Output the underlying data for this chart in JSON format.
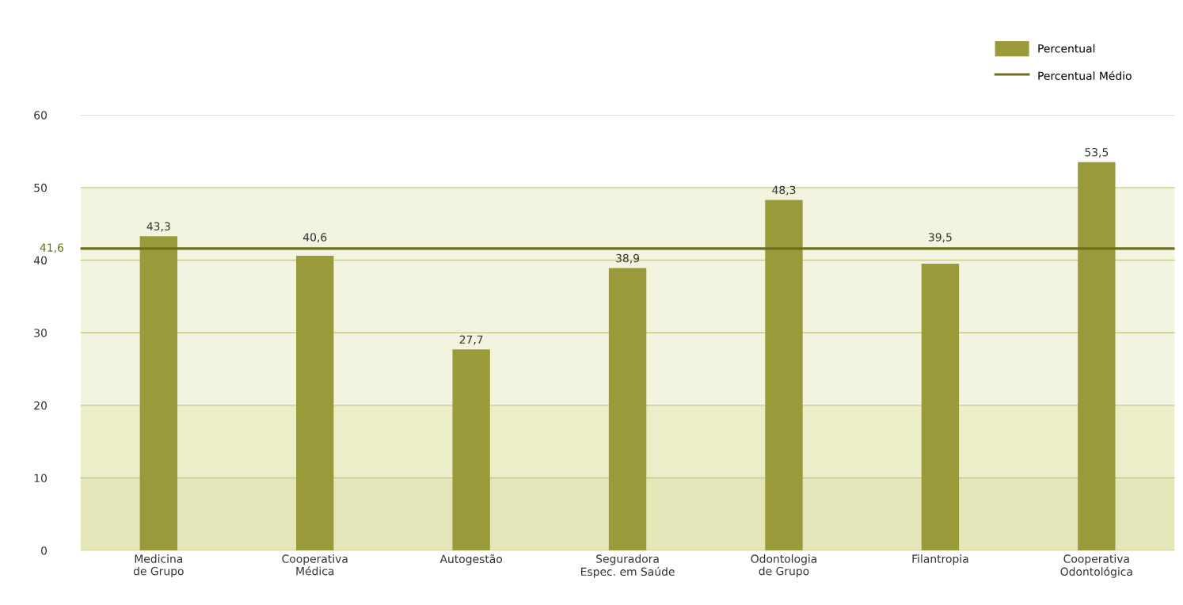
{
  "chart_data": {
    "type": "bar",
    "categories": [
      "Medicina\nde Grupo",
      "Cooperativa\nMédica",
      "Autogestão",
      "Seguradora\nEspec. em Saúde",
      "Odontologia\nde Grupo",
      "Filantropia",
      "Cooperativa\nOdontológica"
    ],
    "series": [
      {
        "name": "Percentual",
        "color": "#9b9a3b",
        "values": [
          43.3,
          40.6,
          27.7,
          38.9,
          48.3,
          39.5,
          53.5
        ],
        "value_labels": [
          "43,3",
          "40,6",
          "27,7",
          "38,9",
          "48,3",
          "39,5",
          "53,5"
        ]
      }
    ],
    "ylim": [
      0,
      60
    ],
    "yticks": [
      0,
      10,
      20,
      30,
      40,
      50,
      60
    ],
    "grid": "y",
    "legend": "top right",
    "ref_lines": [
      {
        "axis": "y",
        "value": 41.6,
        "label": "Percentual Médio",
        "color": "#6e6d1e"
      }
    ],
    "bands": [
      {
        "axis": "y",
        "from": 0,
        "to": 10,
        "color": "#e4e5b9"
      },
      {
        "axis": "y",
        "from": 10,
        "to": 20,
        "color": "#eceec9"
      },
      {
        "axis": "y",
        "from": 20,
        "to": 50,
        "color": "#f3f4df"
      }
    ],
    "annotations": [
      "41,6"
    ]
  }
}
